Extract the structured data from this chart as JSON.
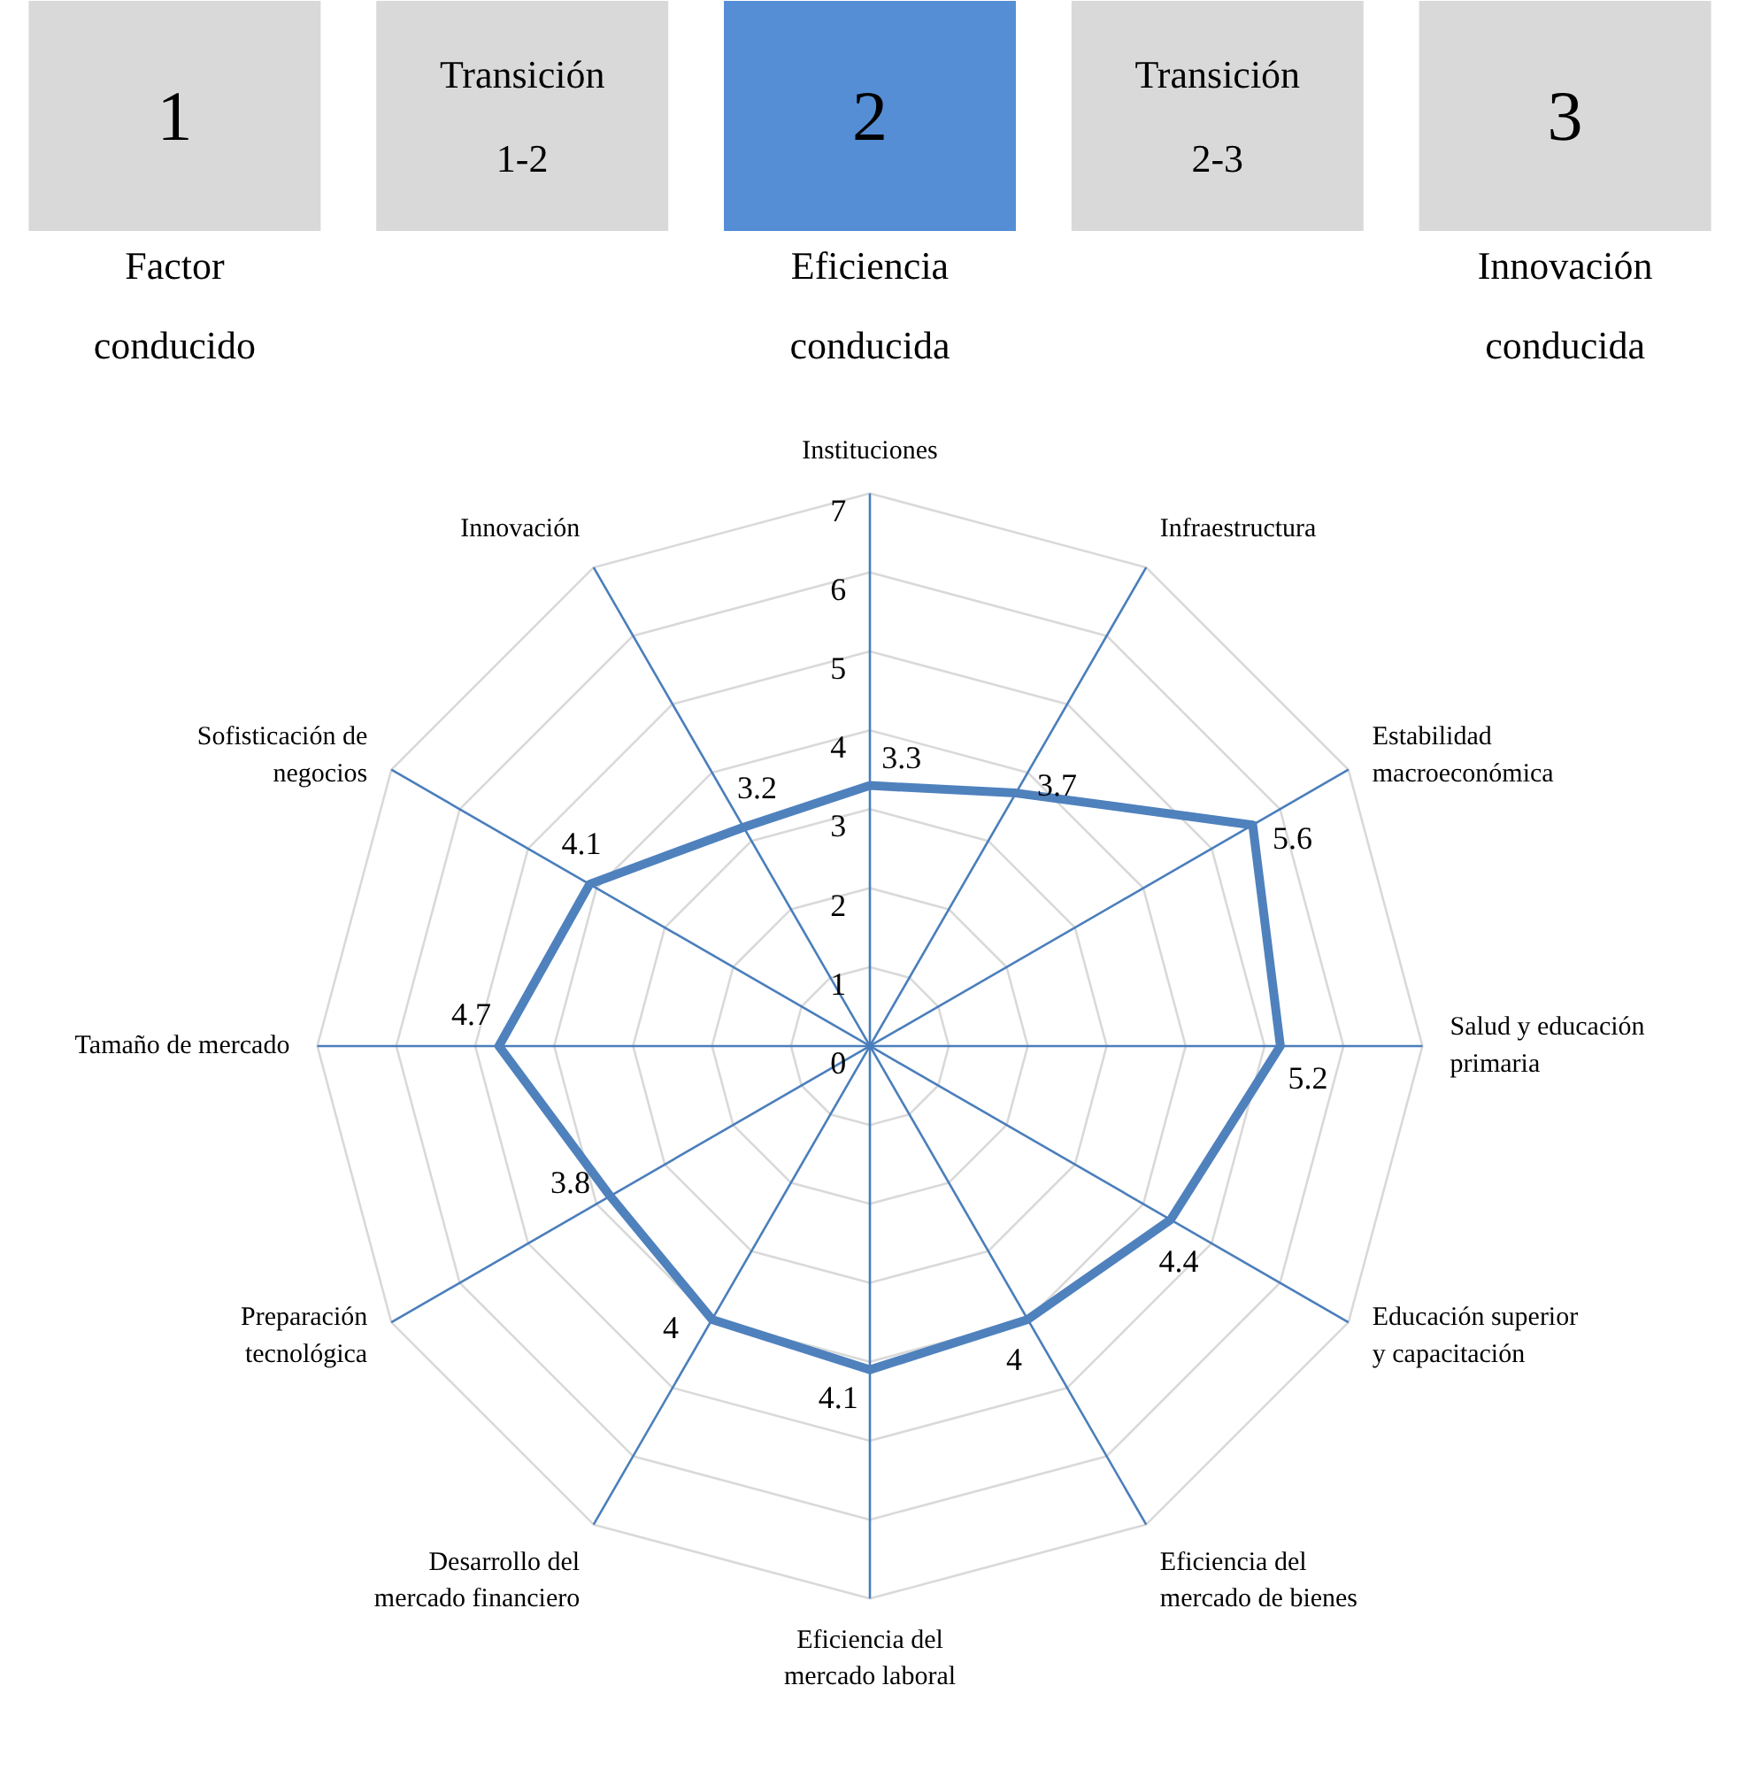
{
  "chart_data": [
    {
      "type": "other",
      "categories": [
        "1",
        "Transición 1-2",
        "2",
        "Transición 2-3",
        "3"
      ],
      "colors": [
        "#d9d9d9",
        "#d9d9d9",
        "#558ed5",
        "#d9d9d9",
        "#d9d9d9"
      ],
      "annotations": [
        {
          "text": "Factor conducido",
          "x": "1"
        },
        {
          "text": "Eficiencia conducida",
          "x": "2"
        },
        {
          "text": "Innovación conducida",
          "x": "3"
        }
      ]
    },
    {
      "type": "radar",
      "categories": [
        "Instituciones",
        "Infraestructura",
        "Estabilidad macroeconómica",
        "Salud y educación primaria",
        "Educación superior y capacitación",
        "Eficiencia del mercado de bienes",
        "Eficiencia del mercado laboral",
        "Desarrollo del mercado financiero",
        "Preparación tecnológica",
        "Tamaño de mercado",
        "Sofisticación de negocios",
        "Innovación"
      ],
      "series": [
        {
          "color": "#4f81bd",
          "values": [
            3.3,
            3.7,
            5.6,
            5.2,
            4.4,
            4,
            4.1,
            4,
            3.8,
            4.7,
            4.1,
            3.2
          ]
        }
      ],
      "ylim": [
        0,
        7
      ],
      "yticks": [
        0,
        1,
        2,
        3,
        4,
        5,
        6,
        7
      ],
      "grid": true,
      "data_labels": true
    }
  ]
}
